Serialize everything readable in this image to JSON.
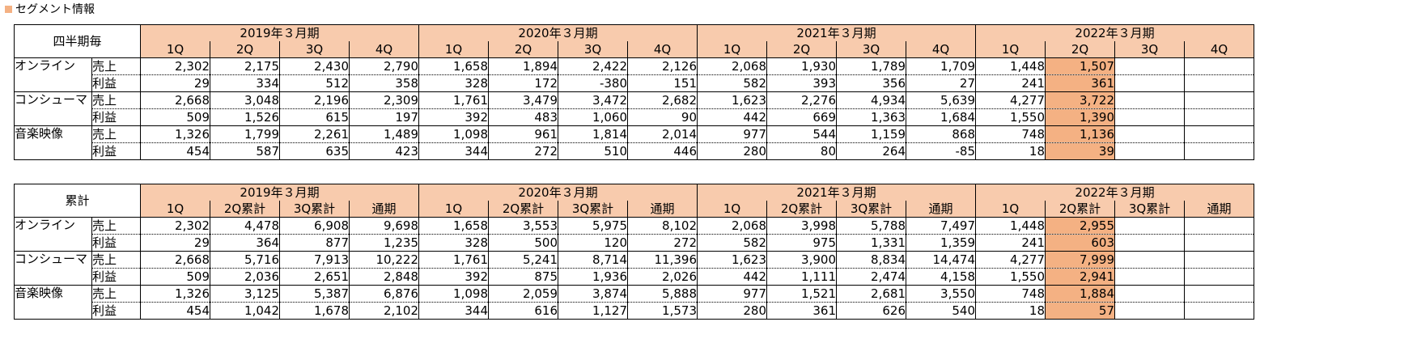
{
  "section_title": "セグメント情報",
  "years": [
    "2019年３月期",
    "2020年３月期",
    "2021年３月期",
    "2022年３月期"
  ],
  "segments": [
    "オンライン",
    "コンシューマ",
    "音楽映像"
  ],
  "metrics": [
    "売上",
    "利益"
  ],
  "quarterly": {
    "corner": "四半期毎",
    "headers": [
      "1Q",
      "2Q",
      "3Q",
      "4Q",
      "1Q",
      "2Q",
      "3Q",
      "4Q",
      "1Q",
      "2Q",
      "3Q",
      "4Q",
      "1Q",
      "2Q",
      "3Q",
      "4Q"
    ],
    "rows": [
      [
        "2,302",
        "2,175",
        "2,430",
        "2,790",
        "1,658",
        "1,894",
        "2,422",
        "2,126",
        "2,068",
        "1,930",
        "1,789",
        "1,709",
        "1,448",
        "1,507",
        "",
        ""
      ],
      [
        "29",
        "334",
        "512",
        "358",
        "328",
        "172",
        "-380",
        "151",
        "582",
        "393",
        "356",
        "27",
        "241",
        "361",
        "",
        ""
      ],
      [
        "2,668",
        "3,048",
        "2,196",
        "2,309",
        "1,761",
        "3,479",
        "3,472",
        "2,682",
        "1,623",
        "2,276",
        "4,934",
        "5,639",
        "4,277",
        "3,722",
        "",
        ""
      ],
      [
        "509",
        "1,526",
        "615",
        "197",
        "392",
        "483",
        "1,060",
        "90",
        "442",
        "669",
        "1,363",
        "1,684",
        "1,550",
        "1,390",
        "",
        ""
      ],
      [
        "1,326",
        "1,799",
        "2,261",
        "1,489",
        "1,098",
        "961",
        "1,814",
        "2,014",
        "977",
        "544",
        "1,159",
        "868",
        "748",
        "1,136",
        "",
        ""
      ],
      [
        "454",
        "587",
        "635",
        "423",
        "344",
        "272",
        "510",
        "446",
        "280",
        "80",
        "264",
        "-85",
        "18",
        "39",
        "",
        ""
      ]
    ]
  },
  "cumulative": {
    "corner": "累計",
    "headers": [
      "1Q",
      "2Q累計",
      "3Q累計",
      "通期",
      "1Q",
      "2Q累計",
      "3Q累計",
      "通期",
      "1Q",
      "2Q累計",
      "3Q累計",
      "通期",
      "1Q",
      "2Q累計",
      "3Q累計",
      "通期"
    ],
    "rows": [
      [
        "2,302",
        "4,478",
        "6,908",
        "9,698",
        "1,658",
        "3,553",
        "5,975",
        "8,102",
        "2,068",
        "3,998",
        "5,788",
        "7,497",
        "1,448",
        "2,955",
        "",
        ""
      ],
      [
        "29",
        "364",
        "877",
        "1,235",
        "328",
        "500",
        "120",
        "272",
        "582",
        "975",
        "1,331",
        "1,359",
        "241",
        "603",
        "",
        ""
      ],
      [
        "2,668",
        "5,716",
        "7,913",
        "10,222",
        "1,761",
        "5,241",
        "8,714",
        "11,396",
        "1,623",
        "3,900",
        "8,834",
        "14,474",
        "4,277",
        "7,999",
        "",
        ""
      ],
      [
        "509",
        "2,036",
        "2,651",
        "2,848",
        "392",
        "875",
        "1,936",
        "2,026",
        "442",
        "1,111",
        "2,474",
        "4,158",
        "1,550",
        "2,941",
        "",
        ""
      ],
      [
        "1,326",
        "3,125",
        "5,387",
        "6,876",
        "1,098",
        "2,059",
        "3,874",
        "5,888",
        "977",
        "1,521",
        "2,681",
        "3,550",
        "748",
        "1,884",
        "",
        ""
      ],
      [
        "454",
        "1,042",
        "1,678",
        "2,102",
        "344",
        "616",
        "1,127",
        "1,573",
        "280",
        "361",
        "626",
        "540",
        "18",
        "57",
        "",
        ""
      ]
    ]
  },
  "highlight_column_index": 13,
  "colors": {
    "header_fill": "#F8CBAD",
    "highlight_fill": "#F4B183"
  }
}
